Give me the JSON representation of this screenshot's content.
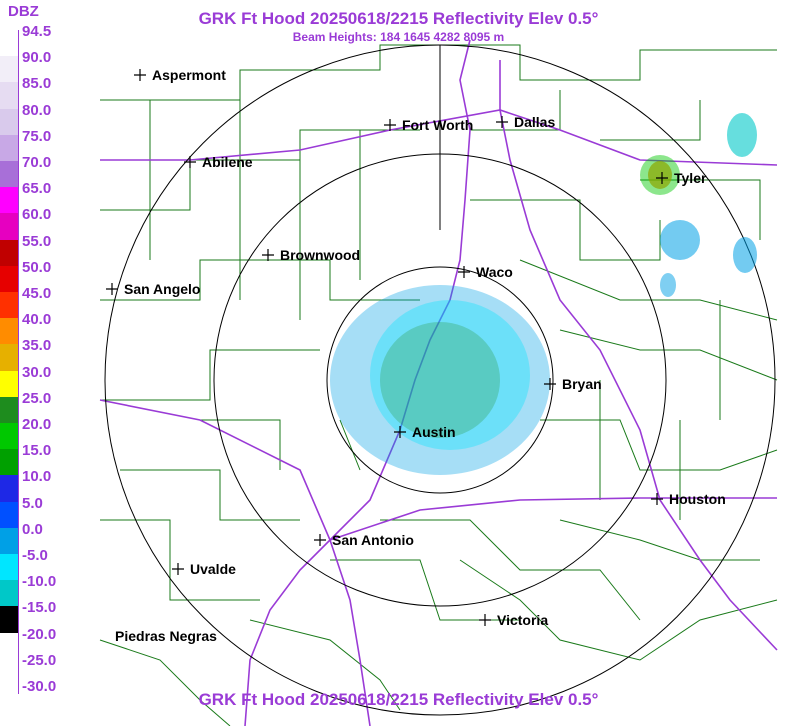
{
  "title": "GRK Ft Hood 20250618/2215 Reflectivity Elev 0.5°",
  "subtitle": "Beam Heights: 184 1645 4282 8095 m",
  "footer_title": "GRK Ft Hood 20250618/2215 Reflectivity Elev 0.5°",
  "legend": {
    "unit": "DBZ",
    "labels": [
      "94.5",
      "90.0",
      "85.0",
      "80.0",
      "75.0",
      "70.0",
      "65.0",
      "60.0",
      "55.0",
      "50.0",
      "45.0",
      "40.0",
      "35.0",
      "30.0",
      "25.0",
      "20.0",
      "15.0",
      "10.0",
      "5.0",
      "0.0",
      "-5.0",
      "-10.0",
      "-15.0",
      "-20.0",
      "-25.0",
      "-30.0"
    ],
    "colors": [
      "#ffffff",
      "#f2eef8",
      "#e6dcf2",
      "#d9caec",
      "#c8a8e6",
      "#a86fd8",
      "#ff00ff",
      "#e600c0",
      "#c00000",
      "#e60000",
      "#ff3000",
      "#ff8c00",
      "#e6b000",
      "#ffff00",
      "#1e8c1e",
      "#00c800",
      "#00a000",
      "#1e28e6",
      "#0050ff",
      "#00a0e6",
      "#00e6ff",
      "#00c8c8",
      "#000000",
      "#ffffff",
      "#ffffff",
      "#ffffff"
    ]
  },
  "cities": [
    {
      "name": "Aspermont"
    },
    {
      "name": "Abilene"
    },
    {
      "name": "Fort Worth"
    },
    {
      "name": "Dallas"
    },
    {
      "name": "Tyler"
    },
    {
      "name": "Brownwood"
    },
    {
      "name": "Waco"
    },
    {
      "name": "San Angelo"
    },
    {
      "name": "Bryan"
    },
    {
      "name": "Austin"
    },
    {
      "name": "Houston"
    },
    {
      "name": "San Antonio"
    },
    {
      "name": "Uvalde"
    },
    {
      "name": "Victoria"
    },
    {
      "name": "Piedras Negras"
    }
  ],
  "colors": {
    "accent": "#9a3bd6",
    "county_lines": "#1a7a1a",
    "highways": "#9a3bd6",
    "range_rings": "#000000"
  }
}
